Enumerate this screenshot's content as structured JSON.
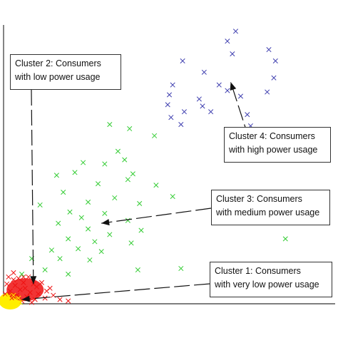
{
  "chart_data": {
    "type": "scatter",
    "title": "",
    "xlabel": "",
    "ylabel": "",
    "grid": false,
    "marker": "x",
    "xlim": [
      0,
      10
    ],
    "ylim": [
      0,
      10
    ],
    "series": [
      {
        "color": "#4040b0",
        "points": [
          [
            6.75,
            9.3
          ],
          [
            7.0,
            9.65
          ],
          [
            6.9,
            8.85
          ],
          [
            8.0,
            9.0
          ],
          [
            8.2,
            8.6
          ],
          [
            8.15,
            8.0
          ],
          [
            5.4,
            8.6
          ],
          [
            6.05,
            8.2
          ],
          [
            6.5,
            7.75
          ],
          [
            6.75,
            7.55
          ],
          [
            7.15,
            7.35
          ],
          [
            7.95,
            7.5
          ],
          [
            5.1,
            7.75
          ],
          [
            5.9,
            7.25
          ],
          [
            4.95,
            7.05
          ],
          [
            5.45,
            6.8
          ],
          [
            5.05,
            6.6
          ],
          [
            6.25,
            6.8
          ],
          [
            7.35,
            6.7
          ],
          [
            5.35,
            6.35
          ],
          [
            7.45,
            6.3
          ],
          [
            5.0,
            7.4
          ],
          [
            6.0,
            7.0
          ]
        ]
      },
      {
        "color": "#33cc33",
        "points": [
          [
            3.2,
            6.35
          ],
          [
            3.8,
            6.2
          ],
          [
            4.55,
            5.95
          ],
          [
            3.45,
            5.4
          ],
          [
            2.4,
            5.0
          ],
          [
            3.65,
            5.1
          ],
          [
            3.05,
            4.95
          ],
          [
            2.15,
            4.65
          ],
          [
            3.9,
            4.6
          ],
          [
            1.6,
            4.55
          ],
          [
            3.75,
            4.4
          ],
          [
            4.6,
            4.2
          ],
          [
            5.1,
            3.8
          ],
          [
            2.85,
            4.25
          ],
          [
            1.8,
            3.95
          ],
          [
            3.35,
            3.75
          ],
          [
            2.55,
            3.6
          ],
          [
            4.1,
            3.55
          ],
          [
            1.1,
            3.5
          ],
          [
            2.0,
            3.25
          ],
          [
            3.05,
            3.2
          ],
          [
            2.35,
            3.05
          ],
          [
            3.75,
            2.95
          ],
          [
            1.65,
            2.85
          ],
          [
            2.55,
            2.65
          ],
          [
            4.15,
            2.6
          ],
          [
            3.2,
            2.45
          ],
          [
            1.95,
            2.3
          ],
          [
            2.75,
            2.2
          ],
          [
            3.85,
            2.15
          ],
          [
            2.25,
            1.95
          ],
          [
            1.45,
            1.9
          ],
          [
            2.95,
            1.85
          ],
          [
            1.7,
            1.6
          ],
          [
            2.6,
            1.55
          ],
          [
            4.05,
            1.2
          ],
          [
            0.85,
            1.6
          ],
          [
            1.25,
            1.2
          ],
          [
            1.95,
            1.05
          ],
          [
            0.55,
            1.05
          ],
          [
            5.35,
            1.25
          ],
          [
            8.5,
            2.3
          ]
        ]
      },
      {
        "color": "#ee1111",
        "points": [
          [
            0.15,
            0.95
          ],
          [
            0.3,
            1.1
          ],
          [
            0.45,
            0.9
          ],
          [
            0.6,
            0.75
          ],
          [
            0.75,
            0.95
          ],
          [
            0.9,
            0.7
          ],
          [
            1.0,
            0.6
          ],
          [
            1.15,
            0.75
          ],
          [
            0.35,
            0.65
          ],
          [
            0.5,
            0.5
          ],
          [
            0.65,
            0.55
          ],
          [
            0.8,
            0.4
          ],
          [
            1.05,
            0.35
          ],
          [
            1.3,
            0.45
          ],
          [
            1.5,
            0.3
          ],
          [
            1.25,
            0.2
          ],
          [
            0.95,
            0.15
          ],
          [
            0.7,
            0.25
          ],
          [
            0.4,
            0.3
          ],
          [
            0.2,
            0.45
          ],
          [
            0.1,
            0.7
          ],
          [
            0.25,
            0.2
          ],
          [
            0.55,
            0.1
          ],
          [
            0.85,
            0.05
          ],
          [
            1.7,
            0.15
          ],
          [
            1.95,
            0.1
          ],
          [
            0.05,
            0.35
          ],
          [
            0.3,
            0.85
          ],
          [
            0.6,
            0.95
          ],
          [
            1.4,
            0.55
          ]
        ]
      },
      {
        "color": "#ffee00",
        "points": [
          [
            0.1,
            0.1
          ],
          [
            0.25,
            0.05
          ],
          [
            0.15,
            0.25
          ],
          [
            0.35,
            0.15
          ],
          [
            0.5,
            0.05
          ],
          [
            0.05,
            0.0
          ],
          [
            0.3,
            0.3
          ],
          [
            0.45,
            0.2
          ]
        ]
      }
    ],
    "annotations": [
      {
        "lines": [
          "Cluster 2: Consumers",
          "with low power usage"
        ],
        "target": [
          0.9,
          0.7
        ]
      },
      {
        "lines": [
          "Cluster 4: Consumers",
          "with high power usage"
        ],
        "target": [
          6.85,
          7.85
        ]
      },
      {
        "lines": [
          "Cluster 3: Consumers",
          "with medium power usage"
        ],
        "target": [
          2.95,
          2.85
        ]
      },
      {
        "lines": [
          "Cluster 1: Consumers",
          "with very low power usage"
        ],
        "target": [
          0.55,
          0.15
        ]
      }
    ]
  }
}
